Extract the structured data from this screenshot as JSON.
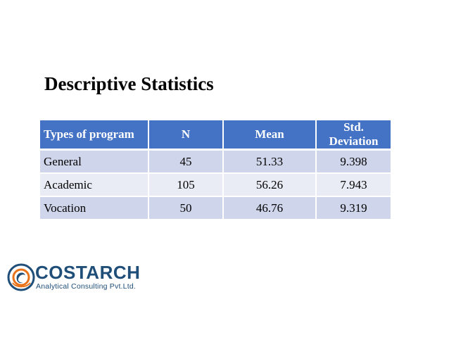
{
  "title": "Descriptive Statistics",
  "table": {
    "headers": [
      "Types of program",
      "N",
      "Mean",
      "Std. Deviation"
    ],
    "rows": [
      [
        "General",
        "45",
        "51.33",
        "9.398"
      ],
      [
        "Academic",
        "105",
        "56.26",
        "7.943"
      ],
      [
        "Vocation",
        "50",
        "46.76",
        "9.319"
      ]
    ]
  },
  "logo": {
    "name": "COSTARCH",
    "tagline": "Analytical Consulting Pvt.Ltd."
  },
  "colors": {
    "header_bg": "#4472c4",
    "row_dark": "#cfd5ea",
    "row_light": "#e9ebf5",
    "logo_blue": "#1f4e79",
    "logo_orange": "#e8731a"
  }
}
